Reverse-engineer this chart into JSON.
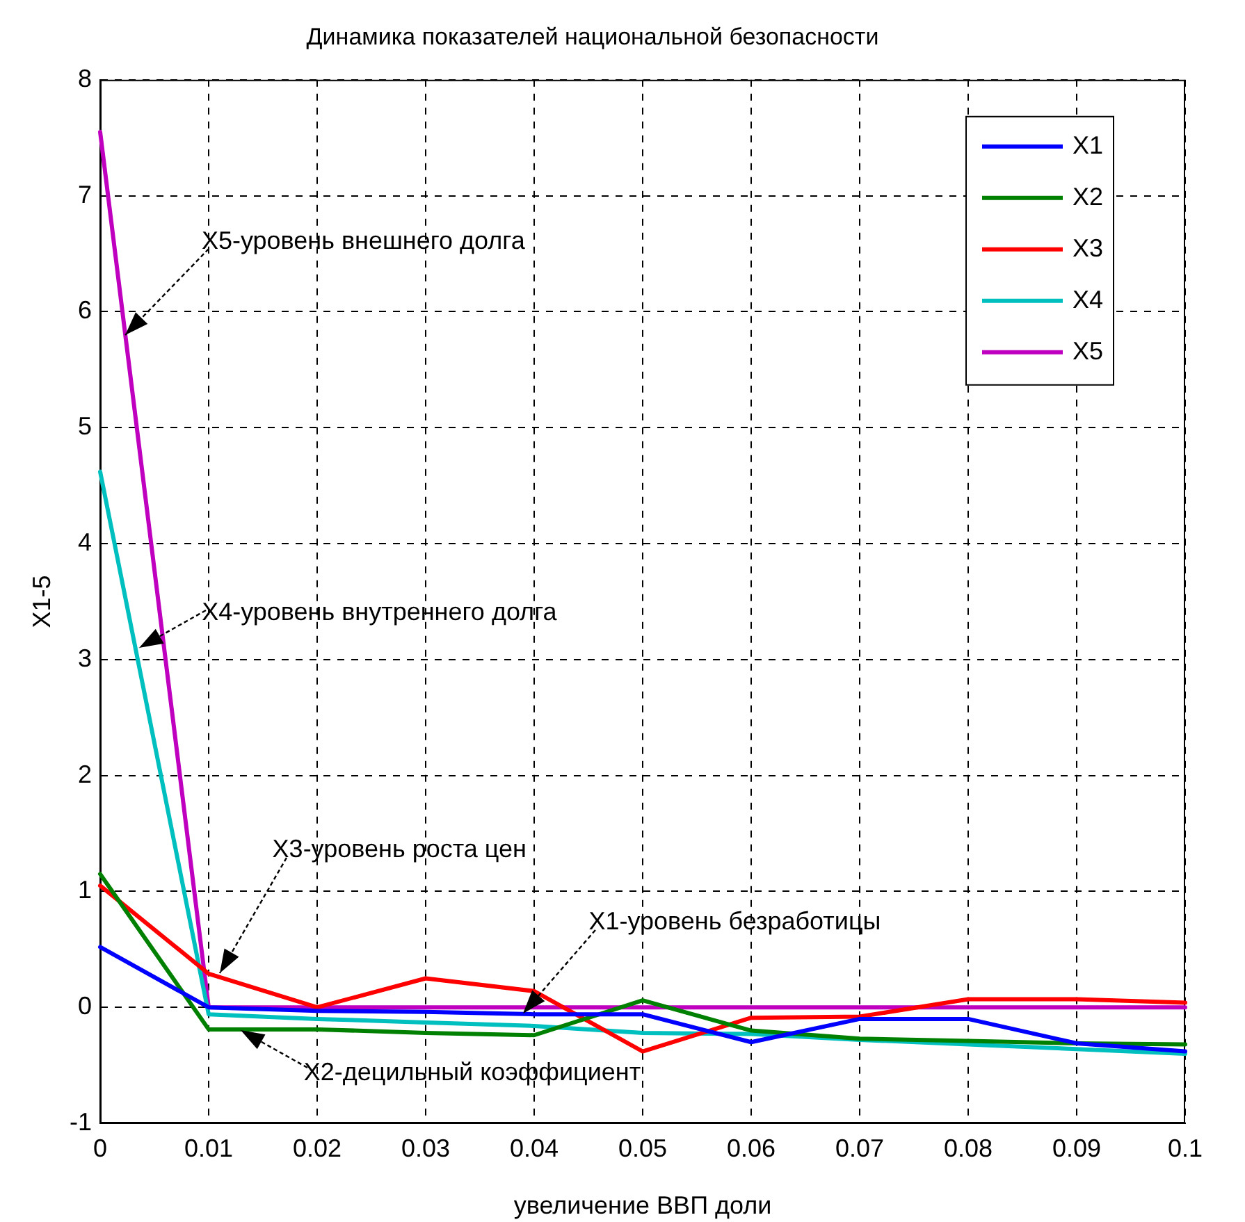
{
  "chart_data": {
    "type": "line",
    "title": "Динамика показателей национальной безопасности",
    "xlabel": "увеличение ВВП доли",
    "ylabel": "X1-5",
    "x": [
      0,
      0.01,
      0.02,
      0.03,
      0.04,
      0.05,
      0.06,
      0.07,
      0.08,
      0.09,
      0.1
    ],
    "series": [
      {
        "name": "X1",
        "color": "#0000ff",
        "values": [
          0.52,
          0,
          -0.03,
          -0.04,
          -0.06,
          -0.06,
          -0.3,
          -0.1,
          -0.1,
          -0.31,
          -0.38
        ]
      },
      {
        "name": "X2",
        "color": "#008000",
        "values": [
          1.15,
          -0.19,
          -0.19,
          -0.22,
          -0.24,
          0.06,
          -0.2,
          -0.27,
          -0.29,
          -0.31,
          -0.32
        ]
      },
      {
        "name": "X3",
        "color": "#ff0000",
        "values": [
          1.05,
          0.29,
          0,
          0.25,
          0.14,
          -0.38,
          -0.09,
          -0.08,
          0.07,
          0.07,
          0.04
        ]
      },
      {
        "name": "X4",
        "color": "#00bfbf",
        "values": [
          4.62,
          -0.06,
          -0.1,
          -0.13,
          -0.16,
          -0.22,
          -0.23,
          -0.28,
          -0.32,
          -0.36,
          -0.4
        ]
      },
      {
        "name": "X5",
        "color": "#bf00bf",
        "values": [
          7.55,
          0,
          0,
          0,
          0,
          0,
          0,
          0,
          0,
          0,
          0
        ]
      }
    ],
    "xlim": [
      0,
      0.1
    ],
    "xticks": [
      0,
      0.01,
      0.02,
      0.03,
      0.04,
      0.05,
      0.06,
      0.07,
      0.08,
      0.09,
      0.1
    ],
    "ylim": [
      -1,
      8
    ],
    "yticks": [
      -1,
      0,
      1,
      2,
      3,
      4,
      5,
      6,
      7,
      8
    ],
    "grid": true,
    "legend": "top right",
    "marker": "none",
    "line_style": "solid",
    "annotations": [
      {
        "text": "X5-уровень внешнего долга",
        "x": 0.0023,
        "y": 5.8
      },
      {
        "text": "X4-уровень внутреннего долга",
        "x": 0.0036,
        "y": 3.1
      },
      {
        "text": "X3-уровень роста цен",
        "x": 0.011,
        "y": 0.3
      },
      {
        "text": "X1-уровень безработицы",
        "x": 0.039,
        "y": -0.05
      },
      {
        "text": "X2-децильный коэффициент",
        "x": 0.013,
        "y": -0.2
      }
    ]
  }
}
